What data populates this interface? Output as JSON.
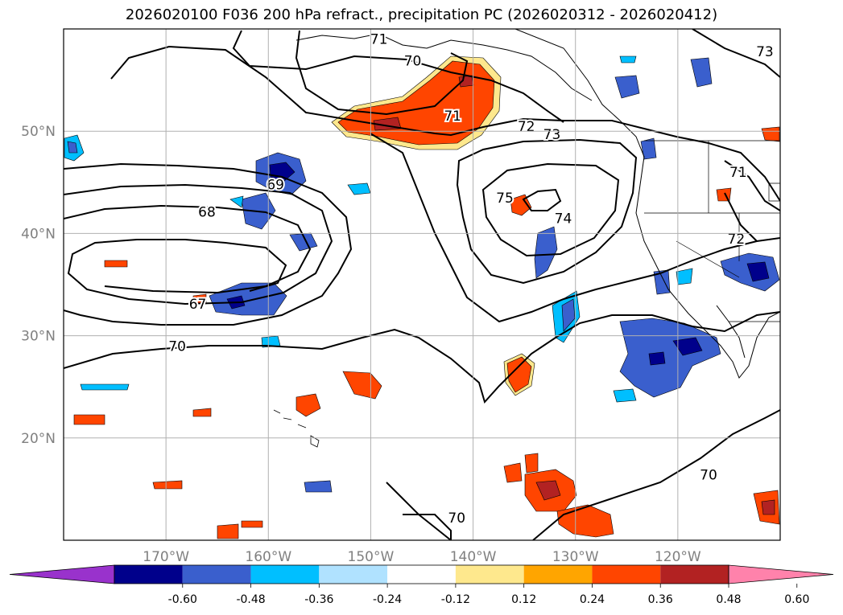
{
  "title": "2026020100 F036 200 hPa refract., precipitation PC (2026020312 - 2026020412)",
  "map": {
    "lon_range": [
      -180,
      -110
    ],
    "lat_range": [
      10,
      60
    ],
    "lon_ticks": [
      {
        "value": -170,
        "label": "170°W"
      },
      {
        "value": -160,
        "label": "160°W"
      },
      {
        "value": -150,
        "label": "150°W"
      },
      {
        "value": -140,
        "label": "140°W"
      },
      {
        "value": -130,
        "label": "130°W"
      },
      {
        "value": -120,
        "label": "120°W"
      }
    ],
    "lat_ticks": [
      {
        "value": 50,
        "label": "50°N"
      },
      {
        "value": 40,
        "label": "40°N"
      },
      {
        "value": 30,
        "label": "30°N"
      },
      {
        "value": 20,
        "label": "20°N"
      }
    ],
    "grid": true
  },
  "contours": {
    "labels": [
      {
        "text": "71",
        "lon": -149.2,
        "lat": 59.0
      },
      {
        "text": "70",
        "lon": -145.9,
        "lat": 56.9
      },
      {
        "text": "71",
        "lon": -142.0,
        "lat": 51.5
      },
      {
        "text": "72",
        "lon": -134.8,
        "lat": 50.5
      },
      {
        "text": "73",
        "lon": -132.3,
        "lat": 49.7
      },
      {
        "text": "73",
        "lon": -111.5,
        "lat": 57.8
      },
      {
        "text": "69",
        "lon": -159.3,
        "lat": 44.8
      },
      {
        "text": "68",
        "lon": -166.0,
        "lat": 42.1
      },
      {
        "text": "75",
        "lon": -136.9,
        "lat": 43.5
      },
      {
        "text": "74",
        "lon": -131.2,
        "lat": 41.5
      },
      {
        "text": "71",
        "lon": -114.1,
        "lat": 46.0
      },
      {
        "text": "72",
        "lon": -114.3,
        "lat": 39.5
      },
      {
        "text": "67",
        "lon": -166.9,
        "lat": 33.1
      },
      {
        "text": "70",
        "lon": -168.9,
        "lat": 29.0
      },
      {
        "text": "70",
        "lon": -141.6,
        "lat": 12.2
      },
      {
        "text": "70",
        "lon": -117.0,
        "lat": 16.4
      }
    ]
  },
  "colorbar": {
    "levels": [
      "-0.60",
      "-0.48",
      "-0.36",
      "-0.24",
      "-0.12",
      "0.12",
      "0.24",
      "0.36",
      "0.48",
      "0.60"
    ],
    "colors": [
      "#9932cc",
      "#00008b",
      "#3a5fcd",
      "#00bfff",
      "#b0e2ff",
      "#ffffff",
      "#fee88d",
      "#ffa500",
      "#ff4500",
      "#b22222",
      "#ff82ab"
    ]
  }
}
